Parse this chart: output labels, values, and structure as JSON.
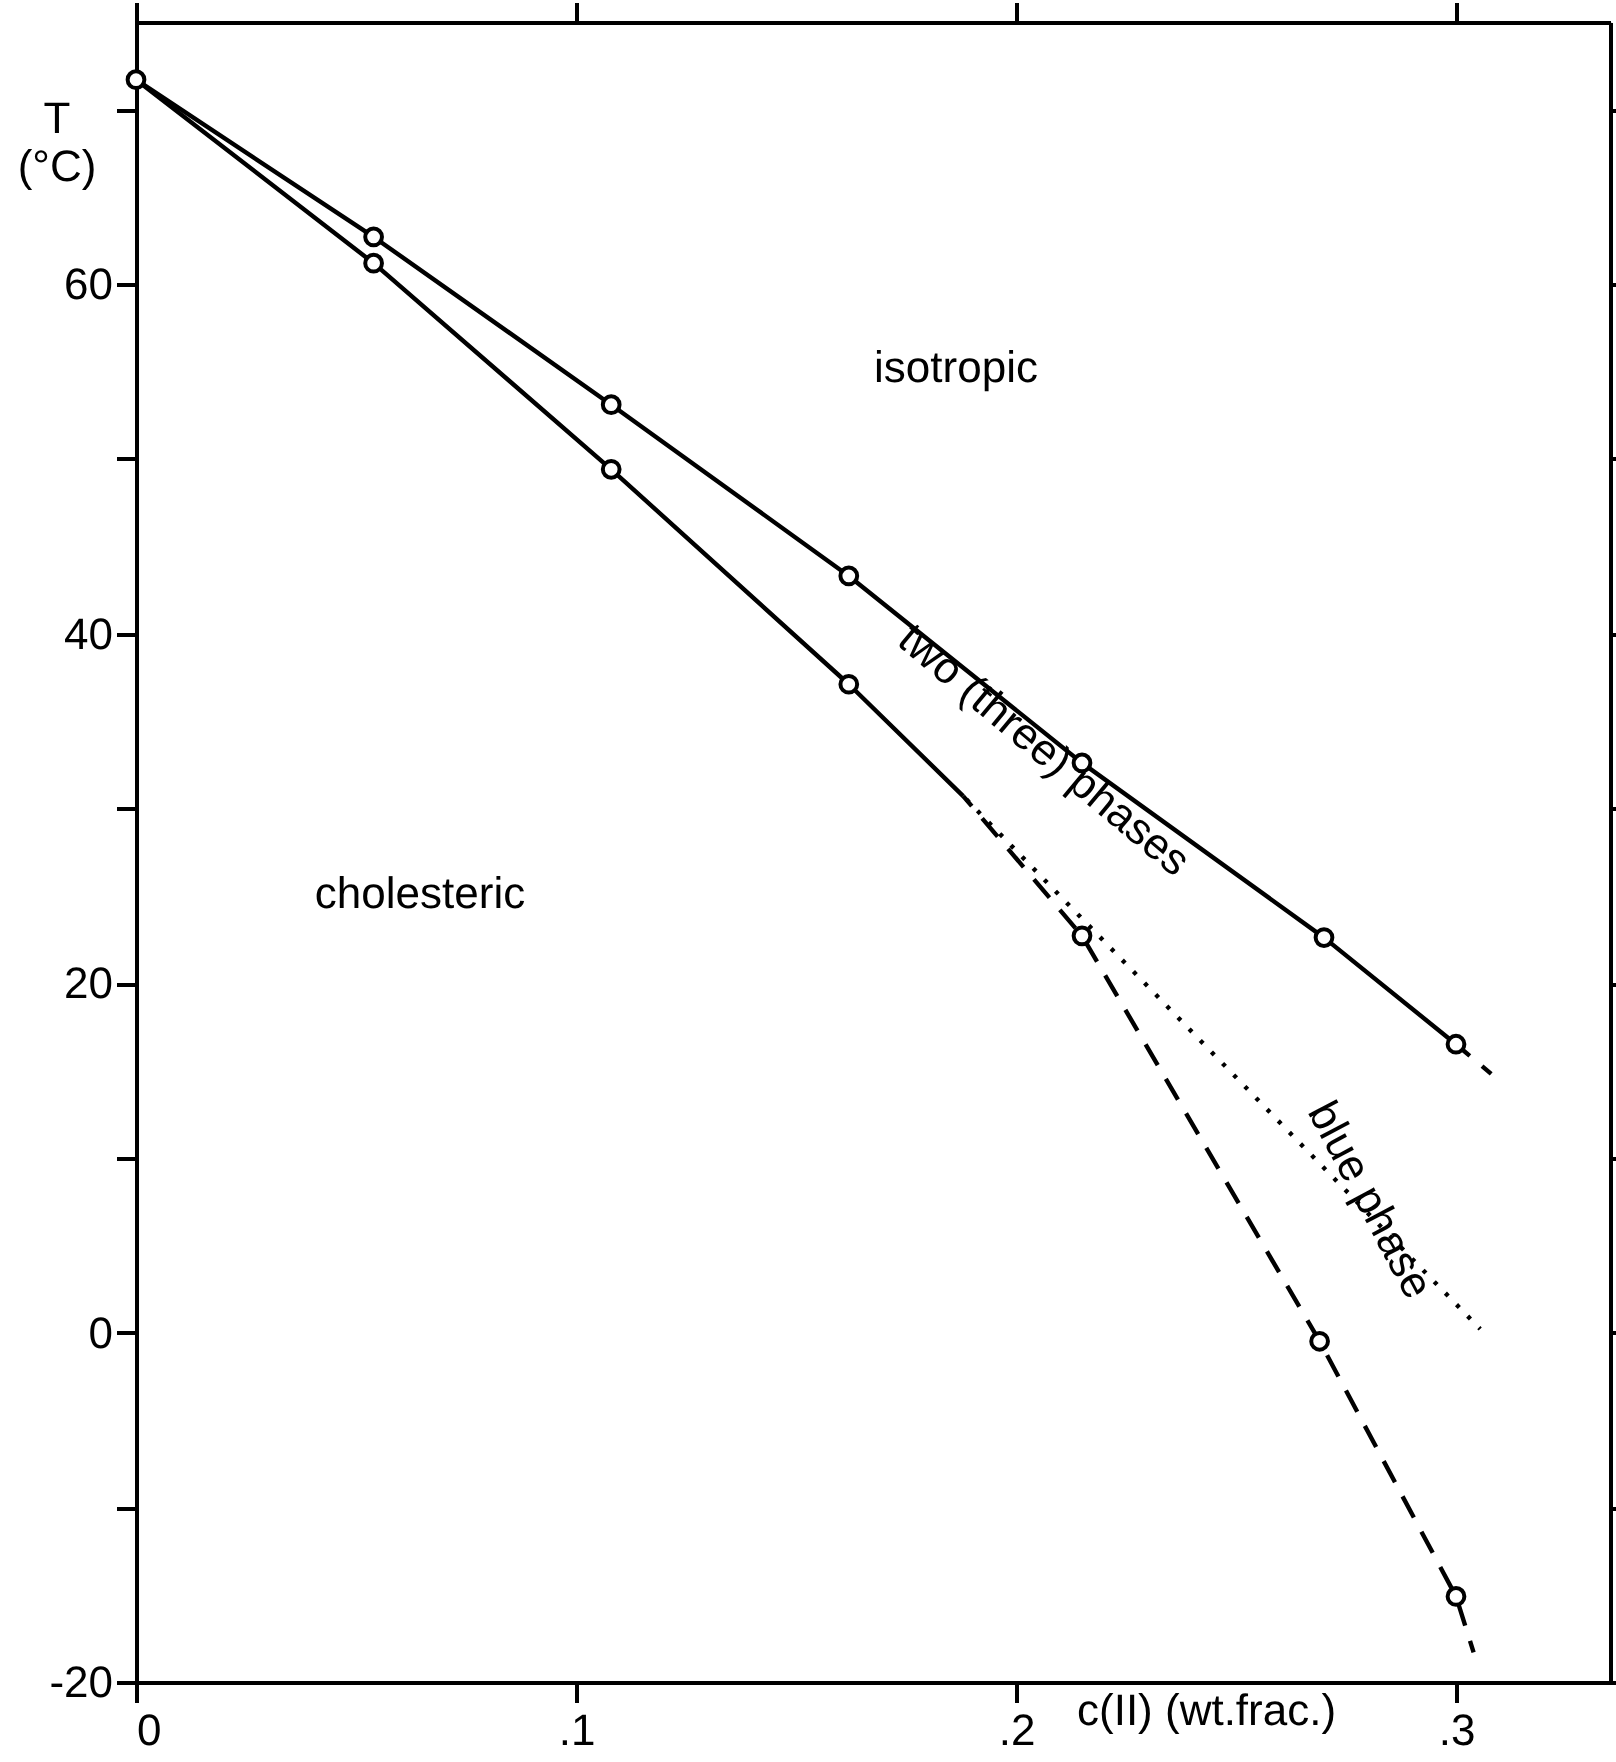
{
  "chart_data": {
    "type": "line",
    "xlabel": "c(II) (wt.frac.)",
    "ylabel": "T\n(°C)",
    "xlim": [
      0,
      0.335
    ],
    "ylim": [
      -20,
      75
    ],
    "xticks": [
      0,
      {
        "value": 0.1,
        "label": ".1"
      },
      {
        "value": 0.2,
        "label": ".2"
      },
      {
        "value": 0.3,
        "label": ".3"
      }
    ],
    "yticks": [
      -20,
      {
        "value": -10,
        "label": null
      },
      0,
      {
        "value": 10,
        "label": null
      },
      20,
      {
        "value": 30,
        "label": null
      },
      40,
      {
        "value": 50,
        "label": null
      },
      60,
      {
        "value": 70,
        "label": null
      }
    ],
    "grid": false,
    "series": [
      {
        "color": "#000000",
        "line_style": "solid",
        "marker": "none",
        "x": [
          0,
          0.054,
          0.108,
          0.162,
          0.215,
          0.27,
          0.3
        ],
        "values": [
          71.7,
          62.7,
          53.1,
          43.3,
          32.6,
          22.6,
          16.5
        ]
      },
      {
        "color": "#000000",
        "line_style": "dashed",
        "marker": "none",
        "x": [
          0.3,
          0.308
        ],
        "values": [
          16.5,
          14.8
        ]
      },
      {
        "color": "#000000",
        "line_style": "solid",
        "marker": "none",
        "x": [
          0,
          0.054,
          0.108,
          0.162,
          0.188
        ],
        "values": [
          71.7,
          61.2,
          49.4,
          37.1,
          30.7
        ]
      },
      {
        "color": "#000000",
        "line_style": "dashed",
        "marker": "none",
        "x": [
          0.188,
          0.215,
          0.269,
          0.3,
          0.304
        ],
        "values": [
          30.7,
          22.7,
          -0.5,
          -15.1,
          -18.3
        ]
      },
      {
        "color": "#000000",
        "line_style": "dotted",
        "marker": "none",
        "x": [
          0.188,
          0.3055
        ],
        "values": [
          30.7,
          0.2
        ]
      },
      {
        "type": "scatter",
        "color": "#000000",
        "marker": "circle",
        "x": [
          0,
          0.054,
          0.108,
          0.162,
          0.215,
          0.27,
          0.3,
          0.054,
          0.108,
          0.162,
          0.215,
          0.269,
          0.3
        ],
        "values": [
          71.7,
          62.7,
          53.1,
          43.3,
          32.6,
          22.6,
          16.5,
          61.2,
          49.4,
          37.1,
          22.7,
          -0.5,
          -15.1
        ]
      }
    ],
    "annotations": [
      "isotropic",
      "cholesteric",
      "two (three) phases",
      "blue phase"
    ]
  }
}
